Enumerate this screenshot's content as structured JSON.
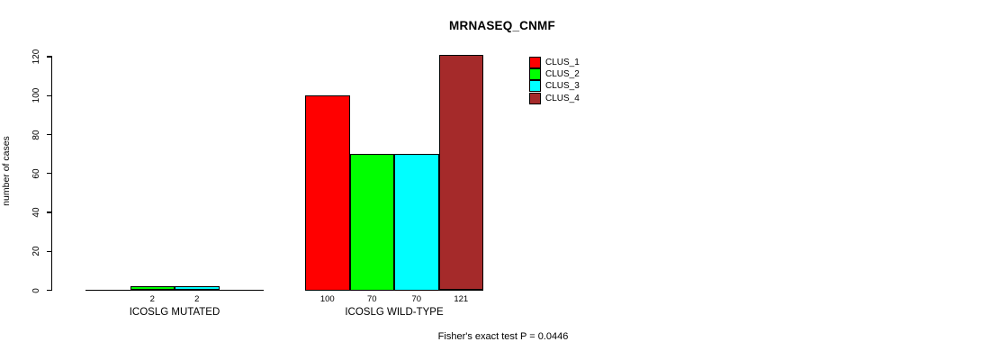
{
  "chart_data": {
    "type": "bar",
    "title": "MRNASEQ_CNMF",
    "ylabel": "number of cases",
    "xlabel": "",
    "annotation": "Fisher's exact test P = 0.0446",
    "ylim": [
      0,
      120
    ],
    "yticks": [
      0,
      20,
      40,
      60,
      80,
      100,
      120
    ],
    "grid": false,
    "legend_position": "top-right-inside",
    "categories": [
      "ICOSLG MUTATED",
      "ICOSLG WILD-TYPE"
    ],
    "series": [
      {
        "name": "CLUS_1",
        "color": "#ff0000",
        "values": [
          0,
          100
        ]
      },
      {
        "name": "CLUS_2",
        "color": "#00ff00",
        "values": [
          2,
          70
        ]
      },
      {
        "name": "CLUS_3",
        "color": "#00ffff",
        "values": [
          2,
          70
        ]
      },
      {
        "name": "CLUS_4",
        "color": "#a52a2a",
        "values": [
          0,
          121
        ]
      }
    ],
    "bar_value_labels": [
      [
        "",
        "2",
        "2",
        ""
      ],
      [
        "100",
        "70",
        "70",
        "121"
      ]
    ]
  }
}
